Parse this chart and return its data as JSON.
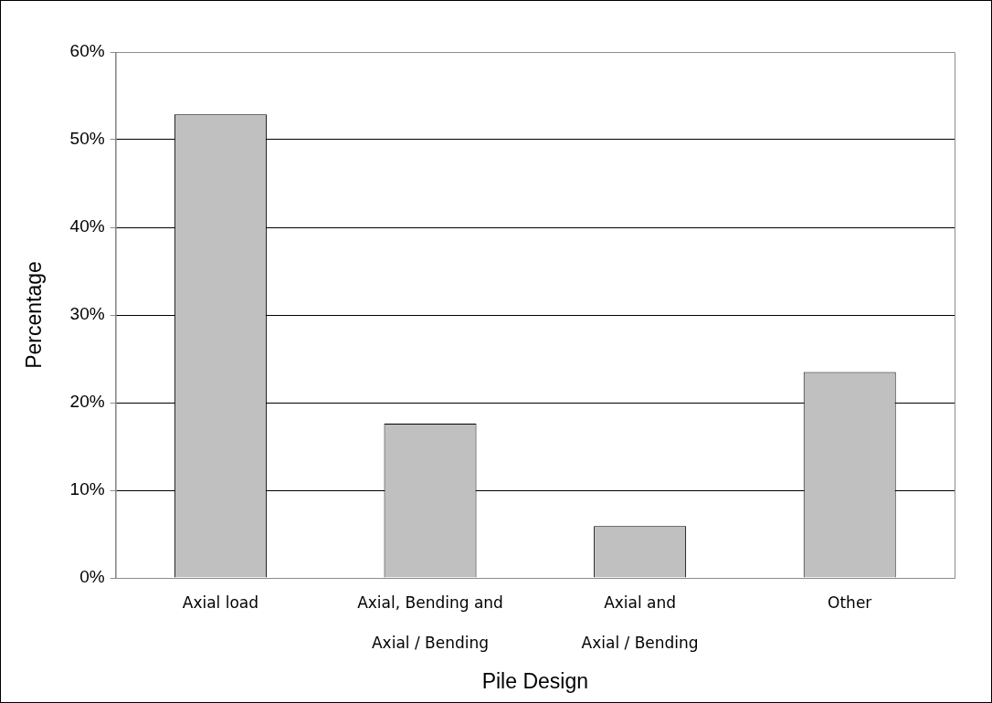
{
  "chart_data": {
    "type": "bar",
    "xlabel": "Pile Design",
    "ylabel": "Percentage",
    "categories": [
      "Axial load",
      "Axial, Bending and\nAxial / Bending",
      "Axial and\nAxial / Bending",
      "Other"
    ],
    "values": [
      52.9,
      17.6,
      5.9,
      23.5
    ],
    "color": "#c0c0c0",
    "ylim": [
      0,
      60
    ],
    "yticks": [
      {
        "value": 0,
        "label": "0%"
      },
      {
        "value": 10,
        "label": "10%"
      },
      {
        "value": 20,
        "label": "20%"
      },
      {
        "value": 30,
        "label": "30%"
      },
      {
        "value": 40,
        "label": "40%"
      },
      {
        "value": 50,
        "label": "50%"
      },
      {
        "value": 60,
        "label": "60%"
      }
    ],
    "grid": "y",
    "legend": false
  }
}
